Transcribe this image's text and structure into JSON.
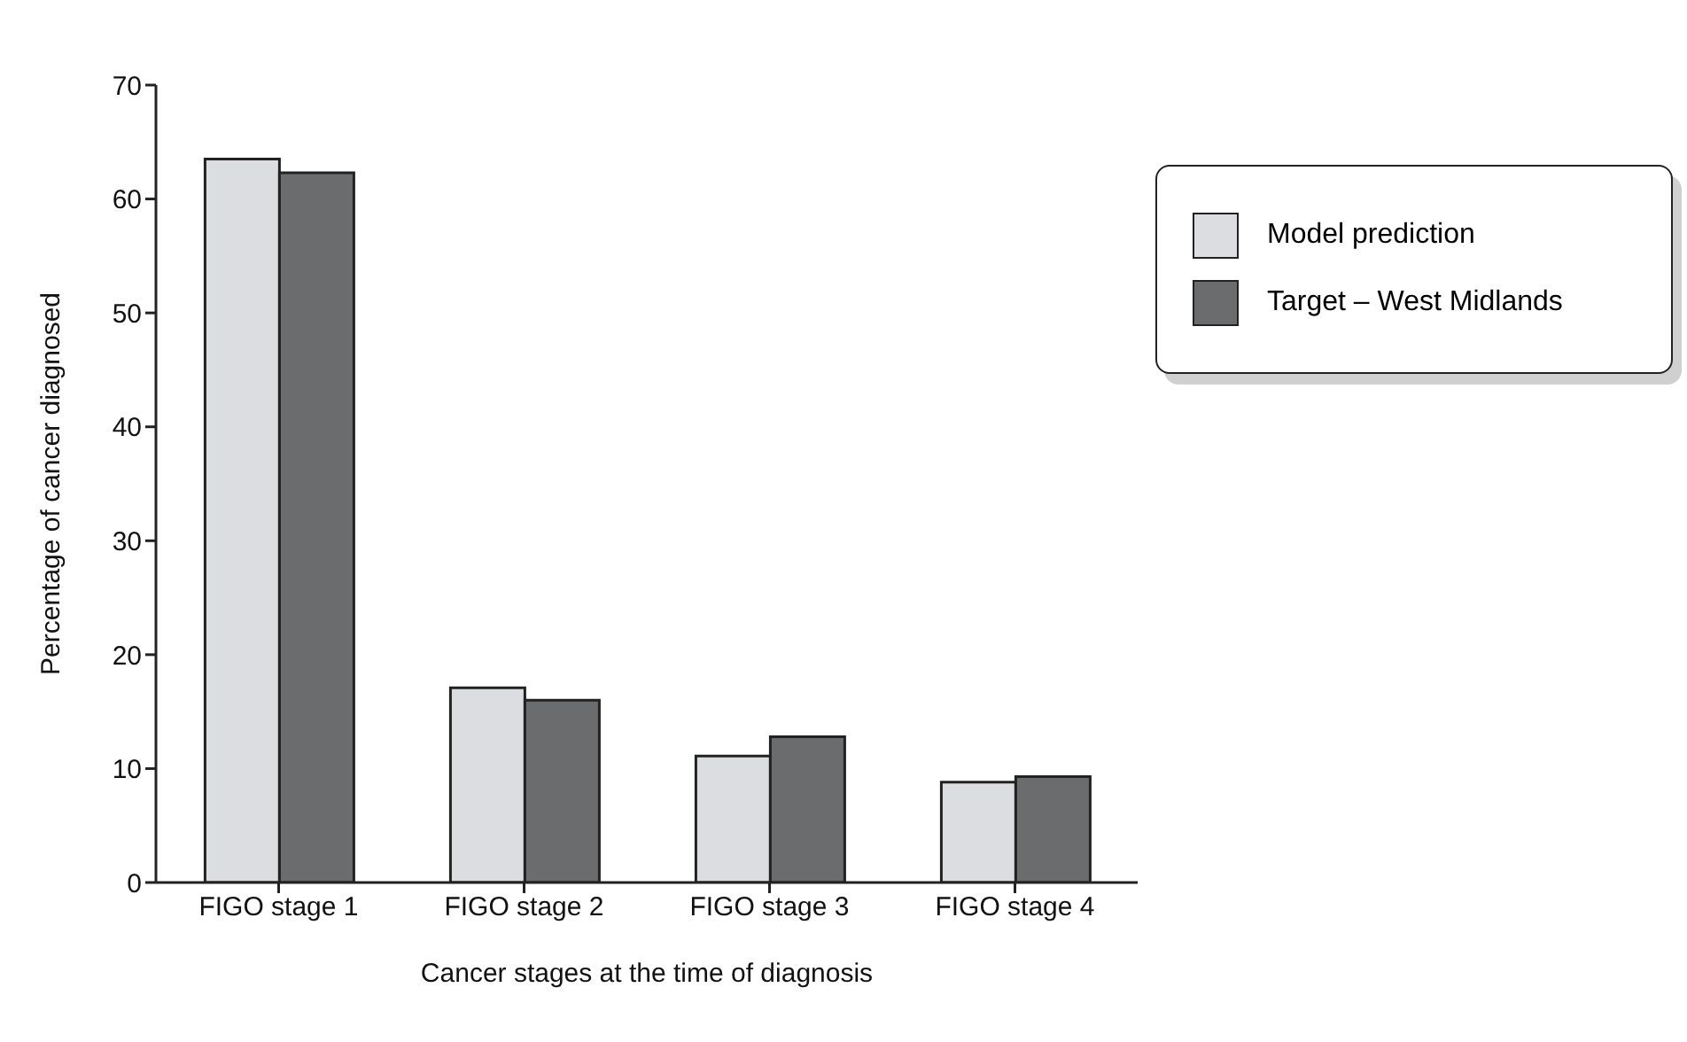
{
  "chart_data": {
    "type": "bar",
    "xlabel": "Cancer stages at the time of diagnosis",
    "ylabel": "Percentage of cancer diagnosed",
    "categories": [
      "FIGO stage 1",
      "FIGO stage 2",
      "FIGO stage 3",
      "FIGO stage 4"
    ],
    "series": [
      {
        "name": "Model prediction",
        "color": "#dcdde0",
        "values": [
          63.5,
          17.1,
          11.1,
          8.8
        ]
      },
      {
        "name": "Target – West Midlands",
        "color": "#6b6c6e",
        "values": [
          62.3,
          16.0,
          12.8,
          9.3
        ]
      }
    ],
    "ylim": [
      0,
      70
    ],
    "yticks": [
      0,
      10,
      20,
      30,
      40,
      50,
      60,
      70
    ],
    "grid": false,
    "legend": "right"
  }
}
